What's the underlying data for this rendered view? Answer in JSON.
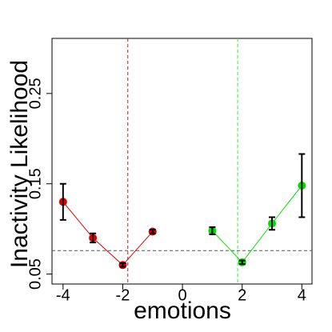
{
  "chart_data": {
    "type": "scatter",
    "xlabel": "emotions",
    "ylabel": "Inactivity Likelihood",
    "xlim": [
      -4.37,
      4.34
    ],
    "ylim": [
      0.039,
      0.311
    ],
    "xticks": [
      -4,
      -2,
      0,
      2,
      4
    ],
    "yticks": [
      0.05,
      0.15,
      0.25
    ],
    "series": [
      {
        "color": "#dd0000",
        "x": [
          -4,
          -3,
          -2,
          -1
        ],
        "values": [
          0.13,
          0.09,
          0.06,
          0.097
        ],
        "errors": [
          0.02,
          0.005,
          0.002,
          0.002
        ]
      },
      {
        "color": "#00dd00",
        "x": [
          1,
          2,
          3,
          4
        ],
        "values": [
          0.098,
          0.063,
          0.106,
          0.148
        ],
        "errors": [
          0.004,
          0.002,
          0.007,
          0.035
        ]
      }
    ],
    "vlines": [
      {
        "value": -1.83,
        "color": "#aa2222"
      },
      {
        "value": 1.85,
        "color": "#33ee33"
      }
    ],
    "hlines": [
      {
        "value": 0.076,
        "color": "#555555"
      }
    ]
  }
}
